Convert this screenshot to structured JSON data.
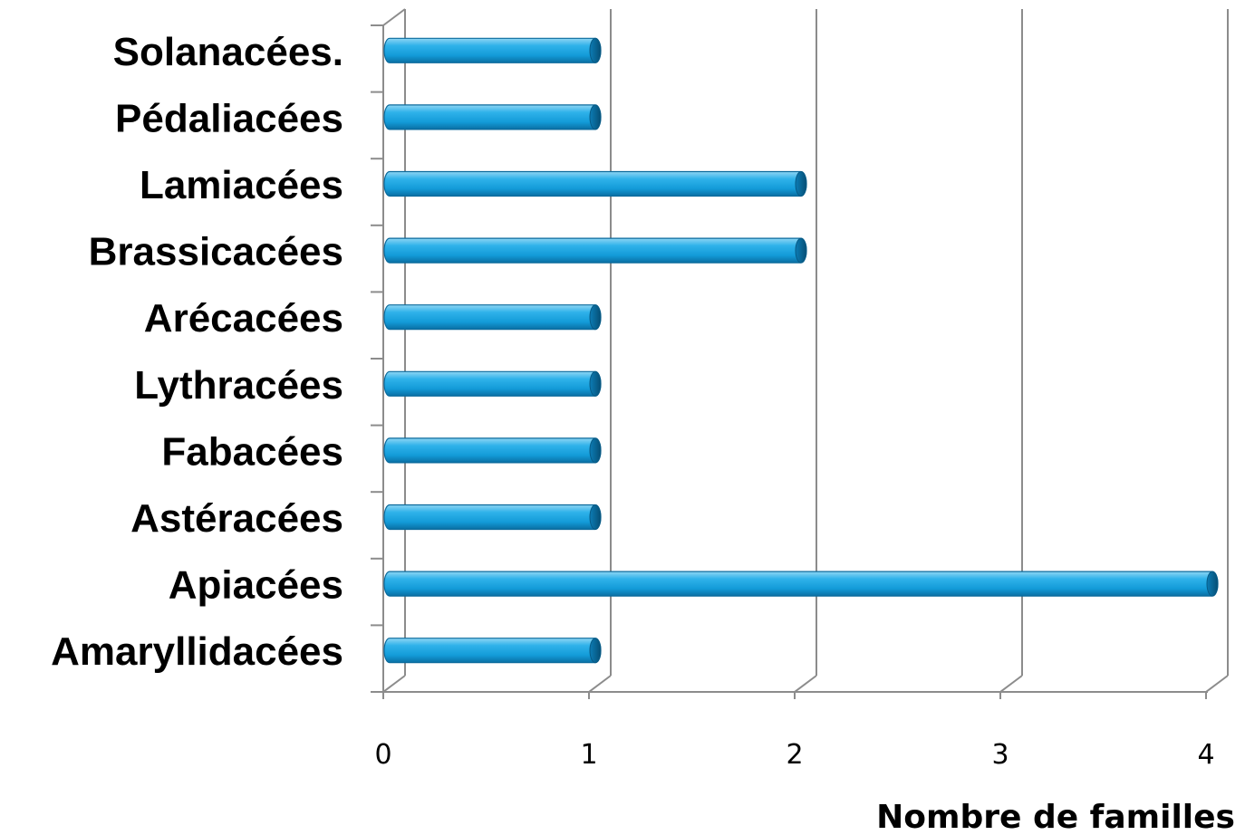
{
  "chart_data": {
    "type": "bar",
    "orientation": "horizontal",
    "categories": [
      "Amaryllidacées",
      "Apiacées",
      "Astéracées",
      "Fabacées",
      "Lythracées",
      "Arécacées",
      "Brassicacées",
      "Lamiacées",
      "Pédaliacées",
      "Solanacées."
    ],
    "values": [
      1,
      4,
      1,
      1,
      1,
      1,
      2,
      2,
      1,
      1
    ],
    "x_ticks": [
      "0",
      "1",
      "2",
      "3",
      "4"
    ],
    "xlim": [
      0,
      4
    ],
    "xlabel": "Nombre de familles",
    "ylabel": "",
    "title": "",
    "grid": true,
    "legend": "none",
    "bar_color": "#1a9fd9"
  }
}
